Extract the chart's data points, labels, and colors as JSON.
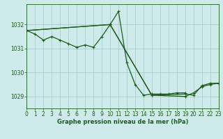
{
  "title": "Graphe pression niveau de la mer (hPa)",
  "bg_color": "#ceeaea",
  "grid_color": "#aacccc",
  "line_color": "#1a5c1a",
  "x_min": 0,
  "x_max": 23,
  "y_min": 1028.5,
  "y_max": 1032.85,
  "yticks": [
    1029,
    1030,
    1031,
    1032
  ],
  "xticks": [
    0,
    1,
    2,
    3,
    4,
    5,
    6,
    7,
    8,
    9,
    10,
    11,
    12,
    13,
    14,
    15,
    16,
    17,
    18,
    19,
    20,
    21,
    22,
    23
  ],
  "series": [
    [
      0,
      1031.75,
      1,
      1031.6,
      2,
      1031.35,
      3,
      1031.5,
      4,
      1031.35,
      5,
      1031.2,
      6,
      1031.05,
      7,
      1031.15,
      8,
      1031.05,
      9,
      1031.5,
      10,
      1032.0,
      11,
      1032.55,
      12,
      1030.4,
      13,
      1029.5,
      14,
      1029.05,
      15,
      1029.1,
      16,
      1029.1,
      17,
      1029.1,
      18,
      1029.15,
      19,
      1029.15
    ],
    [
      0,
      1031.75,
      10,
      1032.0,
      15,
      1029.05,
      19,
      1029.1,
      20,
      1029.05,
      21,
      1029.45,
      22,
      1029.55,
      23,
      1029.55
    ],
    [
      0,
      1031.75,
      10,
      1032.0,
      15,
      1029.05,
      19,
      1029.0,
      20,
      1029.15,
      21,
      1029.4,
      22,
      1029.5,
      23,
      1029.55
    ]
  ]
}
